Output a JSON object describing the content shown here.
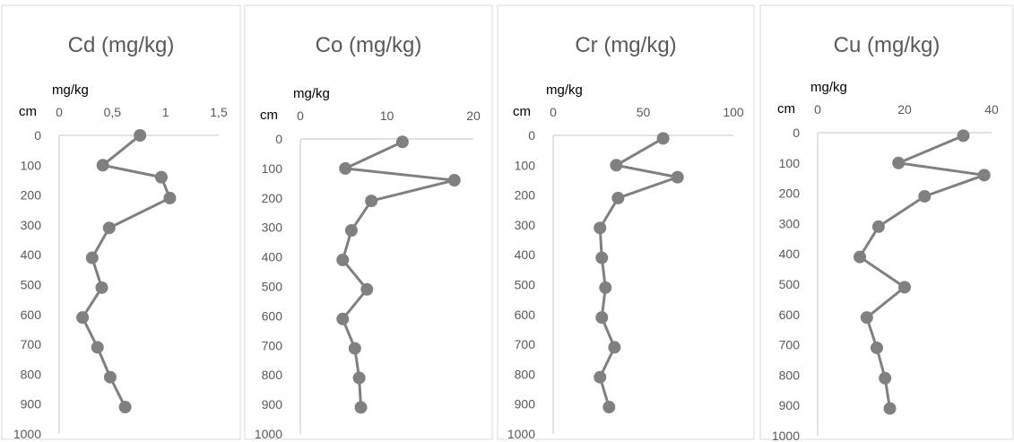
{
  "chart_data": [
    {
      "type": "line",
      "title": "Cd (mg/kg)",
      "xlabel": "mg/kg",
      "ylabel": "cm",
      "xlim": [
        0,
        1.5
      ],
      "xticks": [
        0,
        0.5,
        1,
        1.5
      ],
      "xtick_labels": [
        "0",
        "0,5",
        "1",
        "1,5"
      ],
      "ylim": [
        0,
        1000
      ],
      "yticks": [
        0,
        100,
        200,
        300,
        400,
        500,
        600,
        700,
        800,
        900,
        1000
      ],
      "series": [
        {
          "depth": [
            0,
            100,
            140,
            210,
            310,
            410,
            510,
            610,
            710,
            810,
            910
          ],
          "values": [
            0.76,
            0.41,
            0.96,
            1.04,
            0.47,
            0.31,
            0.4,
            0.22,
            0.36,
            0.48,
            0.62
          ]
        }
      ]
    },
    {
      "type": "line",
      "title": "Co (mg/kg)",
      "xlabel": "mg/kg",
      "ylabel": "cm",
      "xlim": [
        0,
        20
      ],
      "xticks": [
        0,
        10,
        20
      ],
      "xtick_labels": [
        "0",
        "10",
        "20"
      ],
      "ylim": [
        0,
        1000
      ],
      "yticks": [
        0,
        100,
        200,
        300,
        400,
        500,
        600,
        700,
        800,
        900,
        1000
      ],
      "series": [
        {
          "depth": [
            10,
            100,
            140,
            210,
            310,
            410,
            510,
            610,
            710,
            810,
            910
          ],
          "values": [
            11.8,
            5.2,
            17.8,
            8.2,
            5.9,
            4.9,
            7.7,
            4.9,
            6.3,
            6.8,
            7.0
          ]
        }
      ]
    },
    {
      "type": "line",
      "title": "Cr (mg/kg)",
      "xlabel": "mg/kg",
      "ylabel": "cm",
      "xlim": [
        0,
        100
      ],
      "xticks": [
        0,
        50,
        100
      ],
      "xtick_labels": [
        "0",
        "50",
        "100"
      ],
      "ylim": [
        0,
        1000
      ],
      "yticks": [
        0,
        100,
        200,
        300,
        400,
        500,
        600,
        700,
        800,
        900,
        1000
      ],
      "series": [
        {
          "depth": [
            10,
            100,
            140,
            210,
            310,
            410,
            510,
            610,
            710,
            810,
            910
          ],
          "values": [
            61,
            35,
            69,
            36,
            26,
            27,
            29,
            27,
            34,
            26,
            31
          ]
        }
      ]
    },
    {
      "type": "line",
      "title": "Cu (mg/kg)",
      "xlabel": "mg/kg",
      "ylabel": "cm",
      "xlim": [
        0,
        40
      ],
      "xticks": [
        0,
        20,
        40
      ],
      "xtick_labels": [
        "0",
        "20",
        "40"
      ],
      "ylim": [
        0,
        1000
      ],
      "yticks": [
        0,
        100,
        200,
        300,
        400,
        500,
        600,
        700,
        800,
        900,
        1000
      ],
      "series": [
        {
          "depth": [
            10,
            100,
            140,
            210,
            310,
            410,
            510,
            610,
            710,
            810,
            910
          ],
          "values": [
            33.5,
            18.6,
            38.3,
            24.6,
            14.0,
            9.7,
            20.0,
            11.3,
            13.6,
            15.5,
            16.6
          ]
        }
      ]
    }
  ],
  "colors": {
    "series": "#808080",
    "axis": "#d9d9d9",
    "text": "#595959",
    "panel_border": "#d9d9d9"
  }
}
